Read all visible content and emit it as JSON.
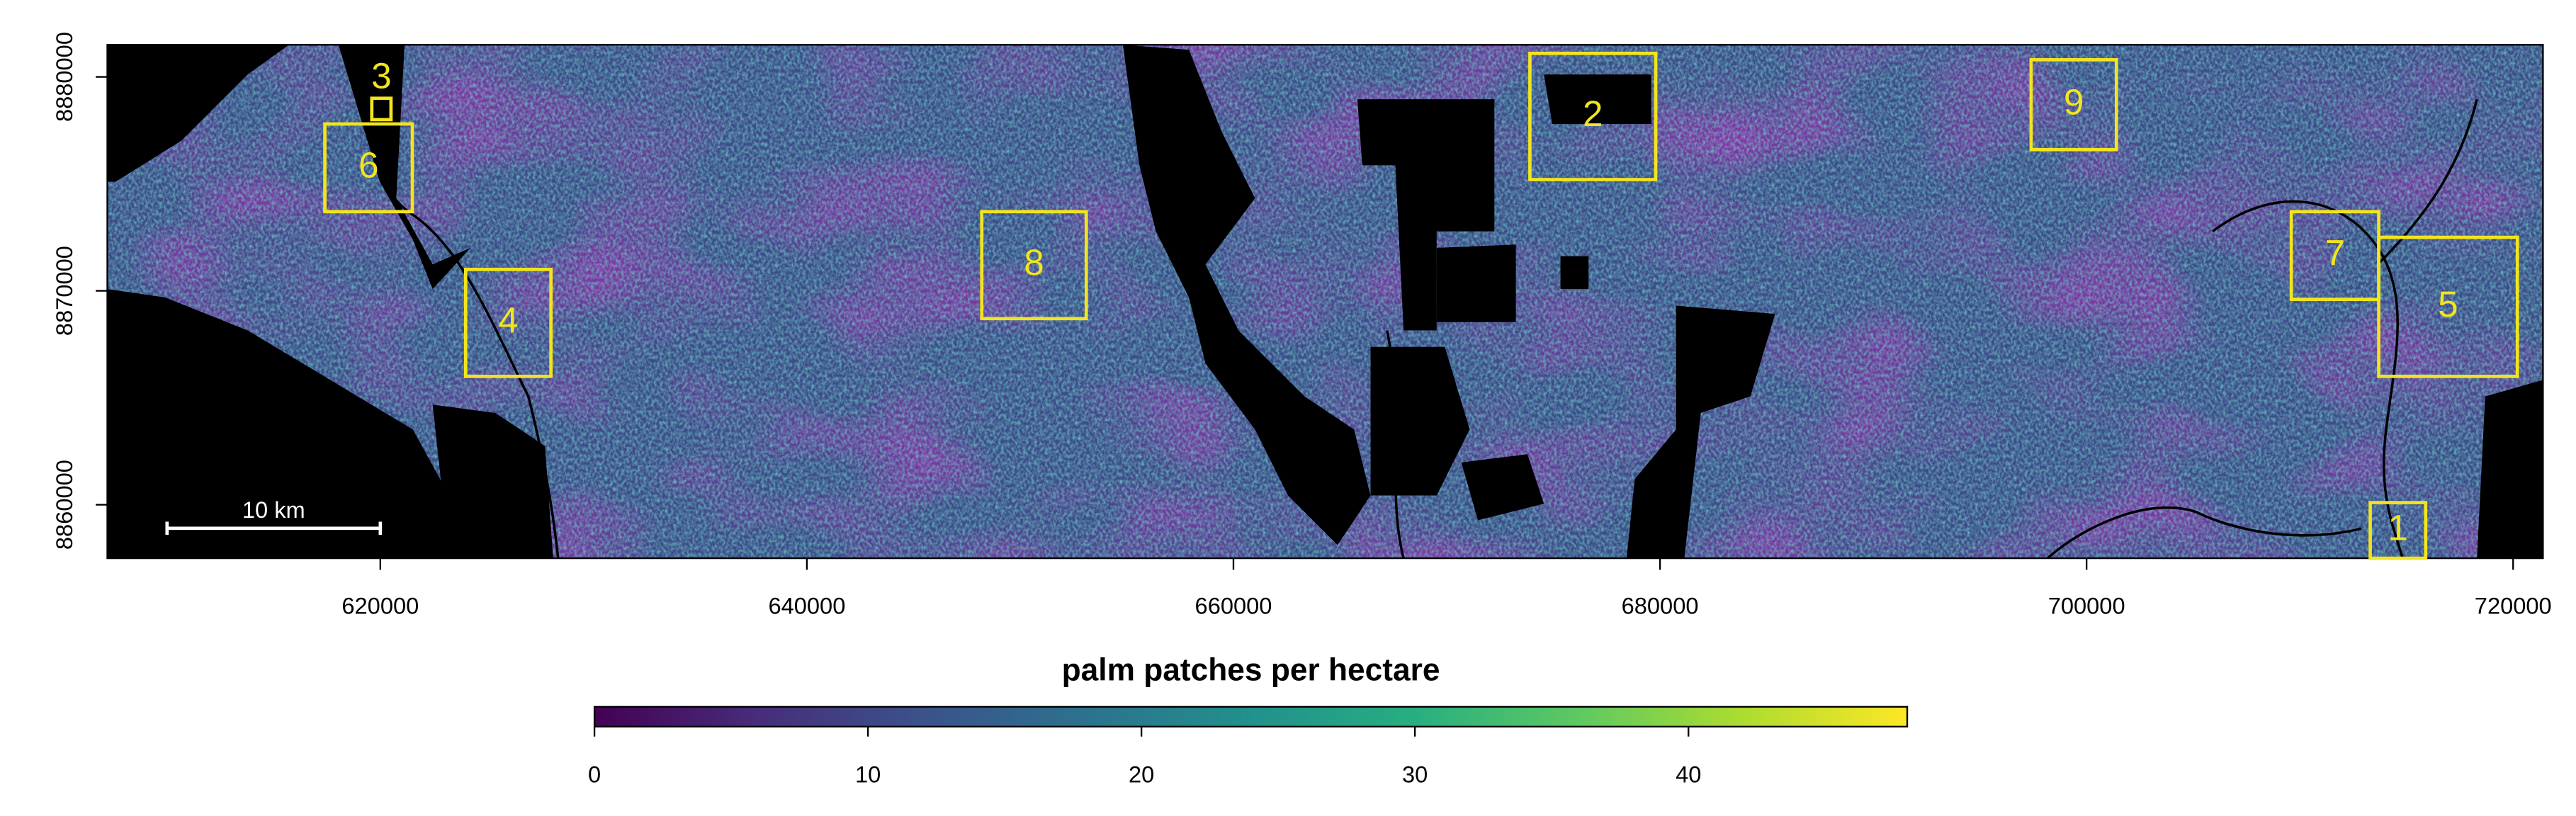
{
  "map": {
    "xlim": [
      607200,
      721400
    ],
    "ylim": [
      8857500,
      8881500
    ],
    "xticks": [
      620000,
      640000,
      660000,
      680000,
      700000,
      720000
    ],
    "yticks": [
      8860000,
      8870000,
      8880000
    ],
    "box_color": "#f2e51d",
    "boxes": [
      {
        "label": "1",
        "x": [
          713300,
          715900
        ],
        "y": [
          8857500,
          8860100
        ]
      },
      {
        "label": "2",
        "x": [
          673900,
          679800
        ],
        "y": [
          8875200,
          8881100
        ]
      },
      {
        "label": "3",
        "x": [
          619600,
          620500
        ],
        "y": [
          8878000,
          8879000
        ]
      },
      {
        "label": "4",
        "x": [
          624000,
          628000
        ],
        "y": [
          8866000,
          8871000
        ]
      },
      {
        "label": "5",
        "x": [
          713700,
          720200
        ],
        "y": [
          8866000,
          8872500
        ]
      },
      {
        "label": "6",
        "x": [
          617400,
          621500
        ],
        "y": [
          8873700,
          8877800
        ]
      },
      {
        "label": "7",
        "x": [
          709600,
          713700
        ],
        "y": [
          8869600,
          8873700
        ]
      },
      {
        "label": "8",
        "x": [
          648200,
          653100
        ],
        "y": [
          8868700,
          8873700
        ]
      },
      {
        "label": "9",
        "x": [
          697400,
          701400
        ],
        "y": [
          8876600,
          8880800
        ]
      }
    ],
    "scale_bar": {
      "label": "10 km",
      "x": 610000,
      "y": 8858900,
      "length": 10000
    }
  },
  "colorbar": {
    "title": "palm patches per hectare",
    "lim": [
      0,
      48
    ],
    "ticks": [
      0,
      10,
      20,
      30,
      40
    ],
    "colors": [
      "#440154",
      "#472d7b",
      "#3b528b",
      "#2c728e",
      "#21918c",
      "#28ae80",
      "#5ec962",
      "#addc30",
      "#fde725"
    ]
  }
}
